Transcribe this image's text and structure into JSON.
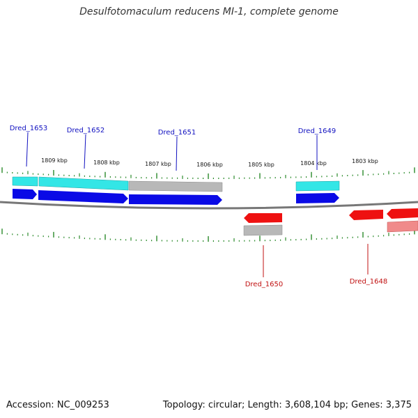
{
  "title": "Desulfotomaculum reducens MI-1, complete genome",
  "footer": {
    "accession": "Accession: NC_009253",
    "summary": "Topology: circular; Length: 3,608,104 bp; Genes: 3,375"
  },
  "colors": {
    "forward_label": "#1010c0",
    "reverse_label": "#c01010",
    "forward_cds": "#0a0ae6",
    "forward_gene": "#33e6e6",
    "reverse_cds": "#ee1111",
    "reverse_gene_light": "#f08a8a",
    "unannotated": "#b8b8b8",
    "backbone": "#777777",
    "ticks": "#2a8a2a"
  },
  "scale_labels": [
    "1809 kbp",
    "1808 kbp",
    "1807 kbp",
    "1806 kbp",
    "1805 kbp",
    "1804 kbp",
    "1803 kbp"
  ],
  "genes": [
    {
      "name": "Dred_1653",
      "strand": "forward"
    },
    {
      "name": "Dred_1652",
      "strand": "forward"
    },
    {
      "name": "Dred_1651",
      "strand": "forward"
    },
    {
      "name": "Dred_1649",
      "strand": "forward"
    },
    {
      "name": "Dred_1650",
      "strand": "reverse"
    },
    {
      "name": "Dred_1648",
      "strand": "reverse"
    }
  ]
}
